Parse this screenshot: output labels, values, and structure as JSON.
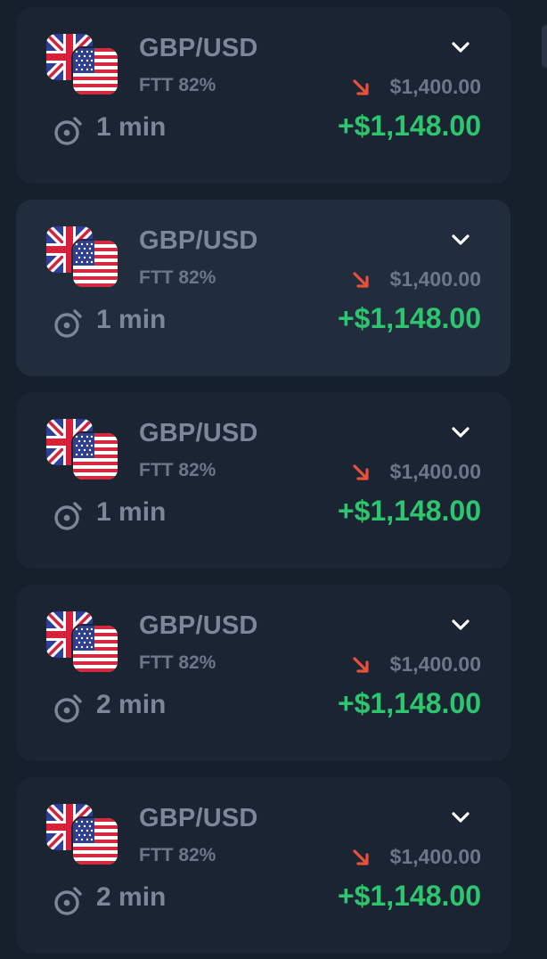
{
  "colors": {
    "page_background": "#161f2c",
    "card_background": "#1b2433",
    "card_selected_background": "#212c3d",
    "muted_text": "#7c8799",
    "profit_green": "#2ec56f",
    "down_arrow_red": "#e9503a"
  },
  "icons": {
    "expand": "chevron-down-icon",
    "timer": "stopwatch-icon",
    "trend": "arrow-down-right-icon",
    "base_flag": "uk-flag-icon",
    "quote_flag": "us-flag-icon"
  },
  "trades": [
    {
      "pair": "GBP/USD",
      "ftt": "FTT 82%",
      "amount": "$1,400.00",
      "duration": "1 min",
      "profit": "+$1,148.00",
      "selected": false
    },
    {
      "pair": "GBP/USD",
      "ftt": "FTT 82%",
      "amount": "$1,400.00",
      "duration": "1 min",
      "profit": "+$1,148.00",
      "selected": true
    },
    {
      "pair": "GBP/USD",
      "ftt": "FTT 82%",
      "amount": "$1,400.00",
      "duration": "1 min",
      "profit": "+$1,148.00",
      "selected": false
    },
    {
      "pair": "GBP/USD",
      "ftt": "FTT 82%",
      "amount": "$1,400.00",
      "duration": "2 min",
      "profit": "+$1,148.00",
      "selected": false
    },
    {
      "pair": "GBP/USD",
      "ftt": "FTT 82%",
      "amount": "$1,400.00",
      "duration": "2 min",
      "profit": "+$1,148.00",
      "selected": false
    }
  ]
}
